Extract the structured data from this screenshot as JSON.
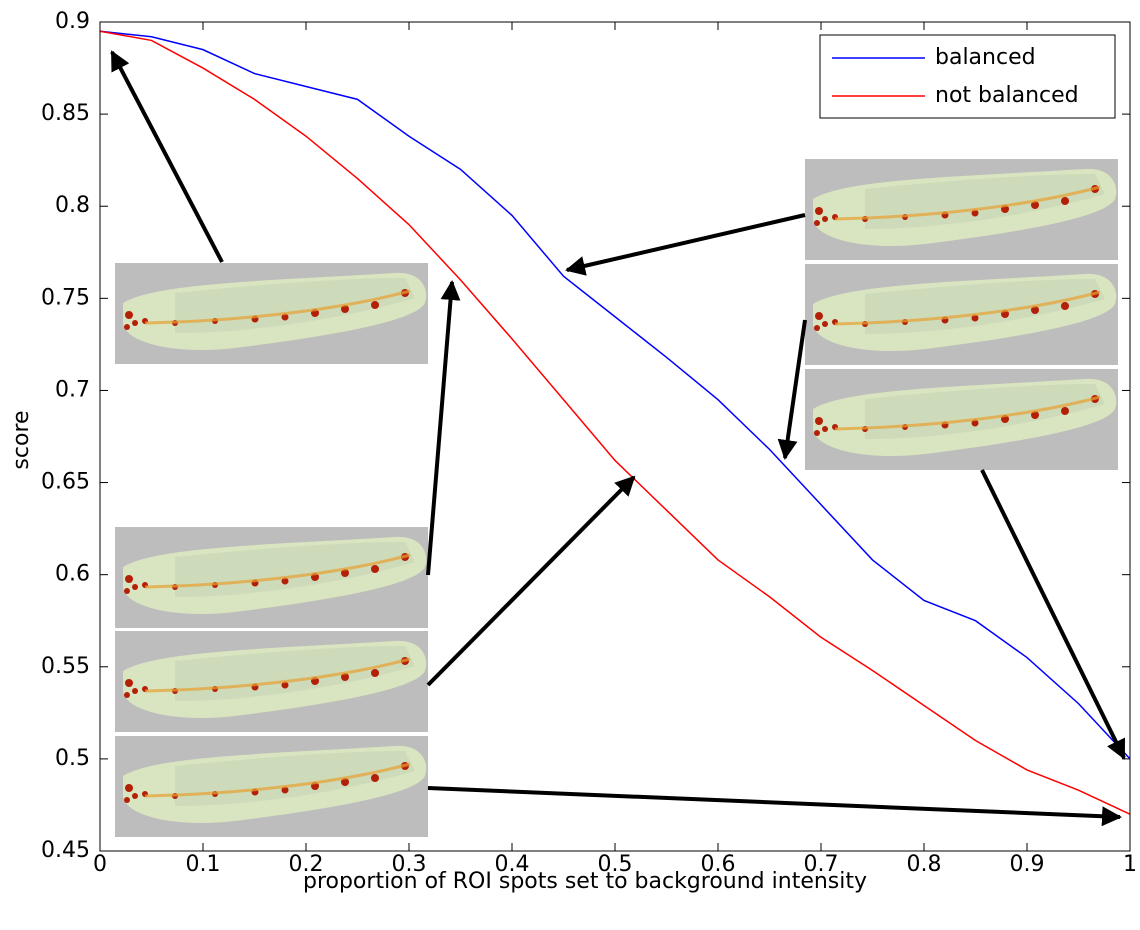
{
  "chart_data": {
    "type": "line",
    "x_label": "proportion of ROI spots set to background intensity",
    "y_label": "score",
    "x": [
      0,
      0.05,
      0.1,
      0.15,
      0.2,
      0.25,
      0.3,
      0.35,
      0.4,
      0.45,
      0.5,
      0.55,
      0.6,
      0.65,
      0.7,
      0.75,
      0.8,
      0.85,
      0.9,
      0.95,
      1
    ],
    "series": [
      {
        "name": "balanced",
        "color": "#0000ff",
        "values": [
          0.895,
          0.892,
          0.885,
          0.872,
          0.865,
          0.858,
          0.838,
          0.82,
          0.795,
          0.762,
          0.74,
          0.718,
          0.695,
          0.668,
          0.638,
          0.608,
          0.586,
          0.575,
          0.555,
          0.53,
          0.5
        ]
      },
      {
        "name": "not balanced",
        "color": "#ff0000",
        "values": [
          0.895,
          0.89,
          0.875,
          0.858,
          0.838,
          0.815,
          0.79,
          0.76,
          0.728,
          0.695,
          0.662,
          0.635,
          0.608,
          0.588,
          0.566,
          0.548,
          0.529,
          0.51,
          0.494,
          0.483,
          0.47
        ]
      }
    ],
    "xlim": [
      0,
      1
    ],
    "ylim": [
      0.45,
      0.9
    ],
    "xticks": [
      0,
      0.1,
      0.2,
      0.3,
      0.4,
      0.5,
      0.6,
      0.7,
      0.8,
      0.9,
      1
    ],
    "yticks": [
      0.45,
      0.5,
      0.55,
      0.6,
      0.65,
      0.7,
      0.75,
      0.8,
      0.85,
      0.9
    ],
    "legend": "upper right"
  }
}
